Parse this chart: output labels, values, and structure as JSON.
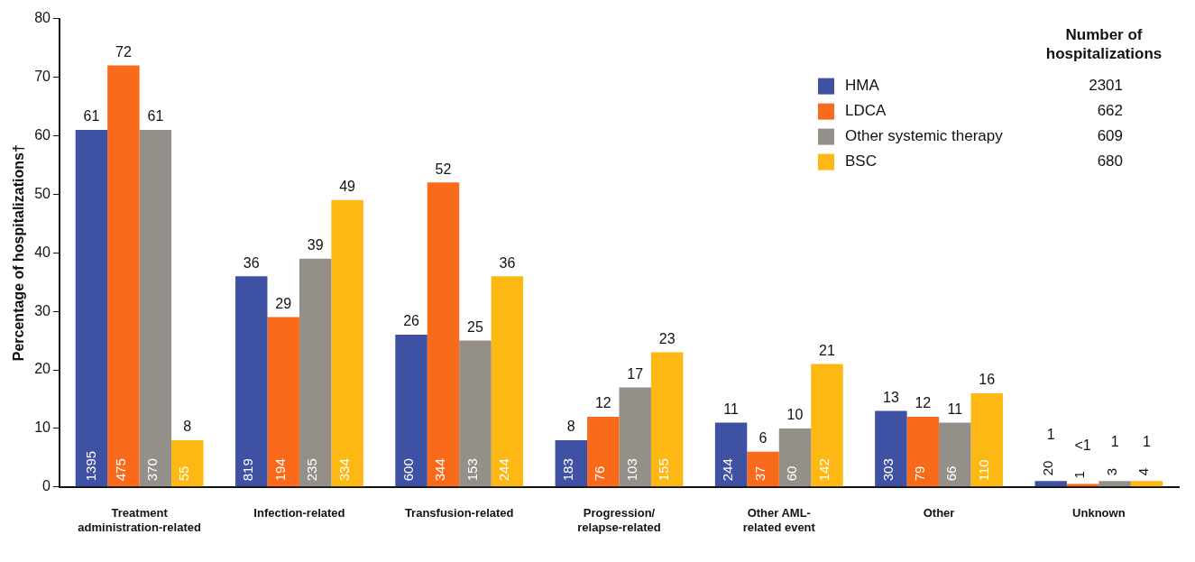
{
  "chart_data": {
    "type": "bar",
    "ylabel": "Percentage of hospitalizations†",
    "legend_title": "Number of hospitalizations",
    "legend": "top right",
    "grid": false,
    "ylim": [
      0,
      80
    ],
    "yticks": [
      0,
      10,
      20,
      30,
      40,
      50,
      60,
      70,
      80
    ],
    "categories": [
      "Treatment administration-related",
      "Infection-related",
      "Transfusion-related",
      "Progression/ relapse-related",
      "Other AML- related event",
      "Other",
      "Unknown"
    ],
    "series": [
      {
        "name": "HMA",
        "color": "#3f51a3",
        "values": [
          61,
          36,
          26,
          8,
          11,
          13,
          1
        ],
        "value_labels": [
          "61",
          "36",
          "26",
          "8",
          "11",
          "13",
          "1"
        ]
      },
      {
        "name": "LDCA",
        "color": "#f96a1b",
        "values": [
          72,
          29,
          52,
          12,
          6,
          12,
          0.5
        ],
        "value_labels": [
          "72",
          "29",
          "52",
          "12",
          "6",
          "12",
          "<1"
        ]
      },
      {
        "name": "Other systemic therapy",
        "color": "#958f89",
        "values": [
          61,
          39,
          25,
          17,
          10,
          11,
          1
        ],
        "value_labels": [
          "61",
          "39",
          "25",
          "17",
          "10",
          "11",
          "1"
        ]
      },
      {
        "name": "BSC",
        "color": "#fdb813",
        "values": [
          8,
          49,
          36,
          23,
          21,
          16,
          1
        ],
        "value_labels": [
          "8",
          "49",
          "36",
          "23",
          "21",
          "16",
          "1"
        ]
      }
    ],
    "annotations": [
      "2301",
      "662",
      "609",
      "680",
      "1395",
      "475",
      "370",
      "55",
      "819",
      "194",
      "235",
      "334",
      "600",
      "344",
      "153",
      "244",
      "183",
      "76",
      "103",
      "155",
      "244",
      "37",
      "60",
      "142",
      "303",
      "79",
      "66",
      "110",
      "20",
      "1",
      "3",
      "4"
    ]
  }
}
